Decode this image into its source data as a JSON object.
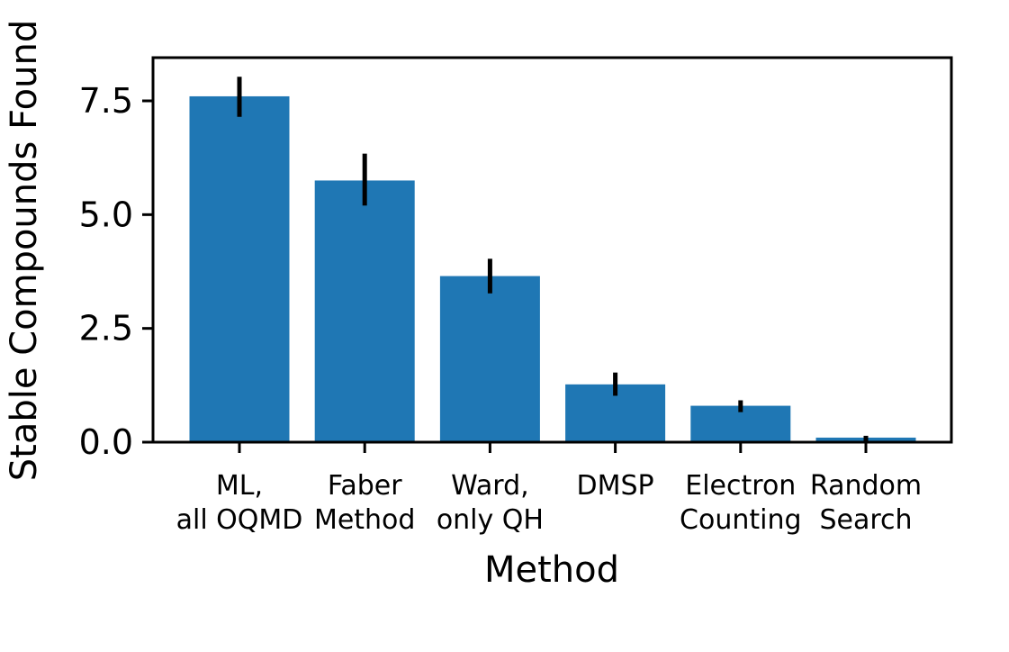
{
  "chart_data": {
    "type": "bar",
    "title": "",
    "xlabel": "Method",
    "ylabel": "Stable Compounds Found",
    "categories": [
      [
        "ML,",
        "all OQMD"
      ],
      [
        "Faber",
        "Method"
      ],
      [
        "Ward,",
        "only QH"
      ],
      [
        "DMSP"
      ],
      [
        "Electron",
        "Counting"
      ],
      [
        "Random",
        "Search"
      ]
    ],
    "values": [
      7.6,
      5.75,
      3.65,
      1.27,
      0.8,
      0.1
    ],
    "error_low": [
      7.15,
      5.2,
      3.27,
      1.02,
      0.66,
      0.0
    ],
    "error_high": [
      8.03,
      6.34,
      4.03,
      1.53,
      0.92,
      0.14
    ],
    "yticks": [
      "0.0",
      "2.5",
      "5.0",
      "7.5"
    ],
    "ytick_values": [
      0.0,
      2.5,
      5.0,
      7.5
    ],
    "ylim": [
      0,
      8.45
    ],
    "grid": false,
    "legend": "none",
    "colors": {
      "bar": "#1f77b4",
      "error_bar": "#000000",
      "axis": "#000000"
    }
  }
}
